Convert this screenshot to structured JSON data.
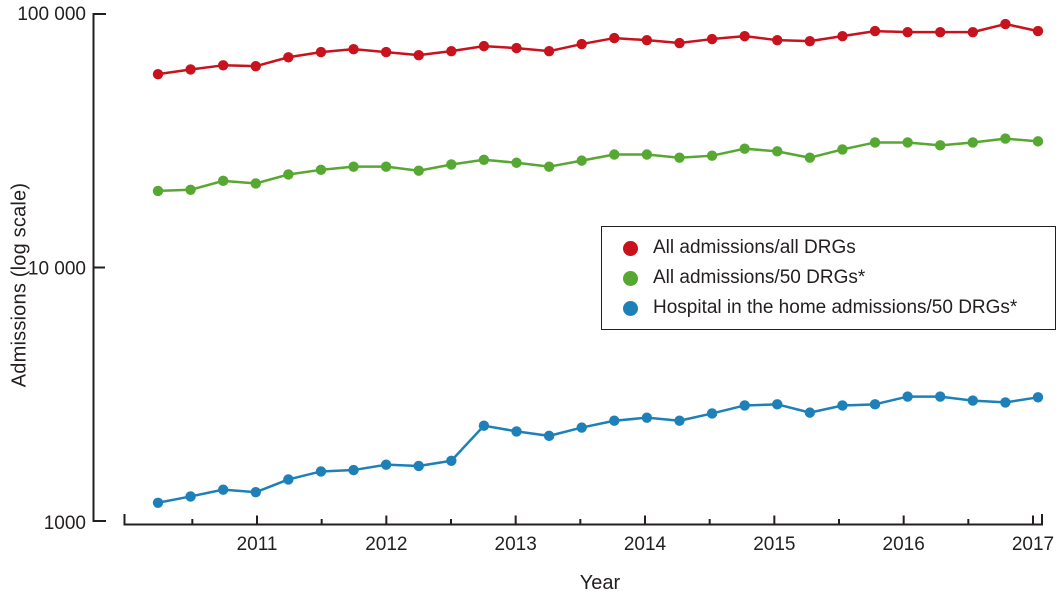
{
  "figure": {
    "background": "#ffffff",
    "axis_color": "#231f20",
    "text_color": "#231f20"
  },
  "y_axis": {
    "title": "Admissions (log scale)",
    "scale": "log",
    "tick_labels": [
      "1000",
      "10 000",
      "100 000"
    ],
    "tick_values": [
      1000,
      10000,
      100000
    ]
  },
  "x_axis": {
    "title": "Year",
    "tick_labels": [
      "2011",
      "2012",
      "2013",
      "2014",
      "2015",
      "2016",
      "2017"
    ],
    "tick_years": [
      2011,
      2012,
      2013,
      2014,
      2015,
      2016,
      2017
    ],
    "minor_tick_years": [
      2010.5,
      2011.5,
      2012.5,
      2013.5,
      2014.5,
      2015.5,
      2016.5
    ]
  },
  "chart_data": {
    "type": "line",
    "title": "",
    "xlabel": "Year",
    "ylabel": "Admissions (log scale)",
    "yscale": "log",
    "ylim": [
      1000,
      100000
    ],
    "grid": false,
    "legend_position": "middle-right",
    "x_quarters": [
      "2010 Q2",
      "2010 Q3",
      "2010 Q4",
      "2011 Q1",
      "2011 Q2",
      "2011 Q3",
      "2011 Q4",
      "2012 Q1",
      "2012 Q2",
      "2012 Q3",
      "2012 Q4",
      "2013 Q1",
      "2013 Q2",
      "2013 Q3",
      "2013 Q4",
      "2014 Q1",
      "2014 Q2",
      "2014 Q3",
      "2014 Q4",
      "2015 Q1",
      "2015 Q2",
      "2015 Q3",
      "2015 Q4",
      "2016 Q1",
      "2016 Q2",
      "2016 Q3",
      "2016 Q4",
      "2017 Q1"
    ],
    "series": [
      {
        "name": "All admissions/all DRGs",
        "color": "#c8121d",
        "values": [
          57500,
          60000,
          62300,
          61800,
          67000,
          70200,
          72100,
          70200,
          68300,
          70800,
          74100,
          72800,
          70800,
          75500,
          79700,
          78200,
          76200,
          79000,
          81100,
          78200,
          77500,
          81100,
          84900,
          84100,
          84100,
          84100,
          90500,
          84900
        ]
      },
      {
        "name": "All admissions/50 DRGs*",
        "color": "#56a832",
        "values": [
          20000,
          20200,
          21900,
          21400,
          23200,
          24200,
          24900,
          24900,
          24000,
          25400,
          26500,
          25800,
          24900,
          26300,
          27800,
          27800,
          27000,
          27500,
          29300,
          28600,
          27000,
          29100,
          31000,
          31000,
          30200,
          31000,
          32100,
          31300
        ]
      },
      {
        "name": "Hospital in the home admissions/50 DRGs*",
        "color": "#1d80b9",
        "values": [
          1190,
          1260,
          1340,
          1310,
          1470,
          1580,
          1600,
          1680,
          1660,
          1740,
          2390,
          2270,
          2180,
          2350,
          2500,
          2570,
          2500,
          2670,
          2870,
          2900,
          2690,
          2870,
          2900,
          3110,
          3110,
          3000,
          2950,
          3090
        ]
      }
    ]
  }
}
